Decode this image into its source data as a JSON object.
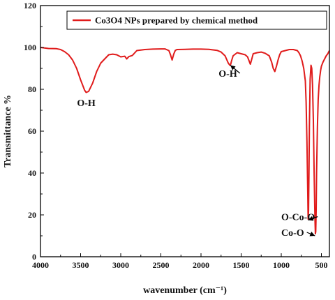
{
  "chart_data": {
    "type": "line",
    "title": "",
    "xlabel": "wavenumber (cm⁻¹)",
    "ylabel": "Transmittance %",
    "xlim": [
      4000,
      400
    ],
    "ylim": [
      0,
      120
    ],
    "x_ticks": [
      4000,
      3500,
      3000,
      2500,
      2000,
      1500,
      1000,
      500
    ],
    "x_tick_labels": [
      "4000",
      "3500",
      "3000",
      "2500",
      "2000",
      "1500",
      "1000",
      "500"
    ],
    "y_ticks": [
      0,
      20,
      40,
      60,
      80,
      100,
      120
    ],
    "y_tick_labels": [
      "0",
      "20",
      "40",
      "60",
      "80",
      "100",
      "120"
    ],
    "grid": false,
    "legend_position": "top-right",
    "series": [
      {
        "name": "Co3O4 NPs prepared by chemical method",
        "color": "#e01b1b",
        "x": [
          4000,
          3900,
          3800,
          3750,
          3700,
          3650,
          3600,
          3550,
          3500,
          3450,
          3430,
          3400,
          3350,
          3300,
          3250,
          3200,
          3150,
          3100,
          3050,
          3000,
          2950,
          2925,
          2900,
          2855,
          2800,
          2700,
          2600,
          2500,
          2450,
          2400,
          2380,
          2360,
          2340,
          2320,
          2300,
          2200,
          2100,
          2000,
          1900,
          1800,
          1750,
          1700,
          1660,
          1640,
          1630,
          1620,
          1600,
          1550,
          1500,
          1450,
          1420,
          1400,
          1385,
          1370,
          1350,
          1300,
          1250,
          1200,
          1150,
          1120,
          1100,
          1080,
          1060,
          1040,
          1020,
          1000,
          950,
          900,
          850,
          800,
          780,
          760,
          740,
          720,
          700,
          690,
          680,
          670,
          665,
          660,
          655,
          650,
          640,
          630,
          620,
          610,
          600,
          590,
          580,
          575,
          570,
          565,
          560,
          550,
          540,
          530,
          520,
          510,
          500,
          480,
          460,
          440,
          420,
          410,
          400
        ],
        "y": [
          100,
          99.5,
          99.4,
          99.0,
          98.0,
          96.5,
          94.0,
          90.0,
          84.5,
          79.5,
          78.5,
          79.0,
          83.0,
          88.5,
          92.5,
          94.5,
          96.5,
          96.8,
          96.5,
          95.5,
          95.8,
          94.5,
          95.6,
          96.2,
          98.5,
          99.0,
          99.2,
          99.3,
          99.3,
          98.5,
          96.5,
          94.0,
          96.8,
          98.6,
          99.0,
          99.1,
          99.2,
          99.2,
          99.1,
          98.6,
          97.8,
          96.0,
          92.5,
          91.5,
          92.0,
          93.5,
          96.0,
          97.5,
          97.0,
          96.5,
          95.5,
          93.5,
          92.0,
          94.0,
          97.0,
          97.5,
          97.8,
          97.2,
          96.0,
          93.0,
          90.0,
          88.5,
          91.0,
          94.0,
          96.5,
          98.0,
          98.5,
          99.0,
          99.0,
          98.5,
          97.5,
          96.0,
          93.5,
          90.0,
          84.0,
          74.0,
          55.0,
          30.0,
          18.0,
          22.0,
          40.0,
          62.0,
          85.0,
          91.5,
          90.0,
          82.0,
          65.0,
          40.0,
          18.0,
          11.0,
          12.0,
          22.0,
          40.0,
          62.0,
          75.0,
          82.0,
          86.0,
          89.0,
          91.0,
          93.0,
          94.5,
          96.0,
          97.0,
          97.8,
          98.5
        ]
      }
    ],
    "annotations": [
      {
        "text": "O-H",
        "x": 3430,
        "y": 72,
        "arrow": false
      },
      {
        "text": "O-H",
        "x": 1780,
        "y": 86,
        "arrow": true,
        "arrow_to_x": 1635,
        "arrow_to_y": 91.5
      },
      {
        "text": "O-Co-O",
        "x": 1000,
        "y": 17.5,
        "arrow": true,
        "arrow_to_x": 665,
        "arrow_to_y": 17.5
      },
      {
        "text": "Co-O",
        "x": 1000,
        "y": 10,
        "arrow": true,
        "arrow_to_x": 580,
        "arrow_to_y": 10
      }
    ]
  }
}
